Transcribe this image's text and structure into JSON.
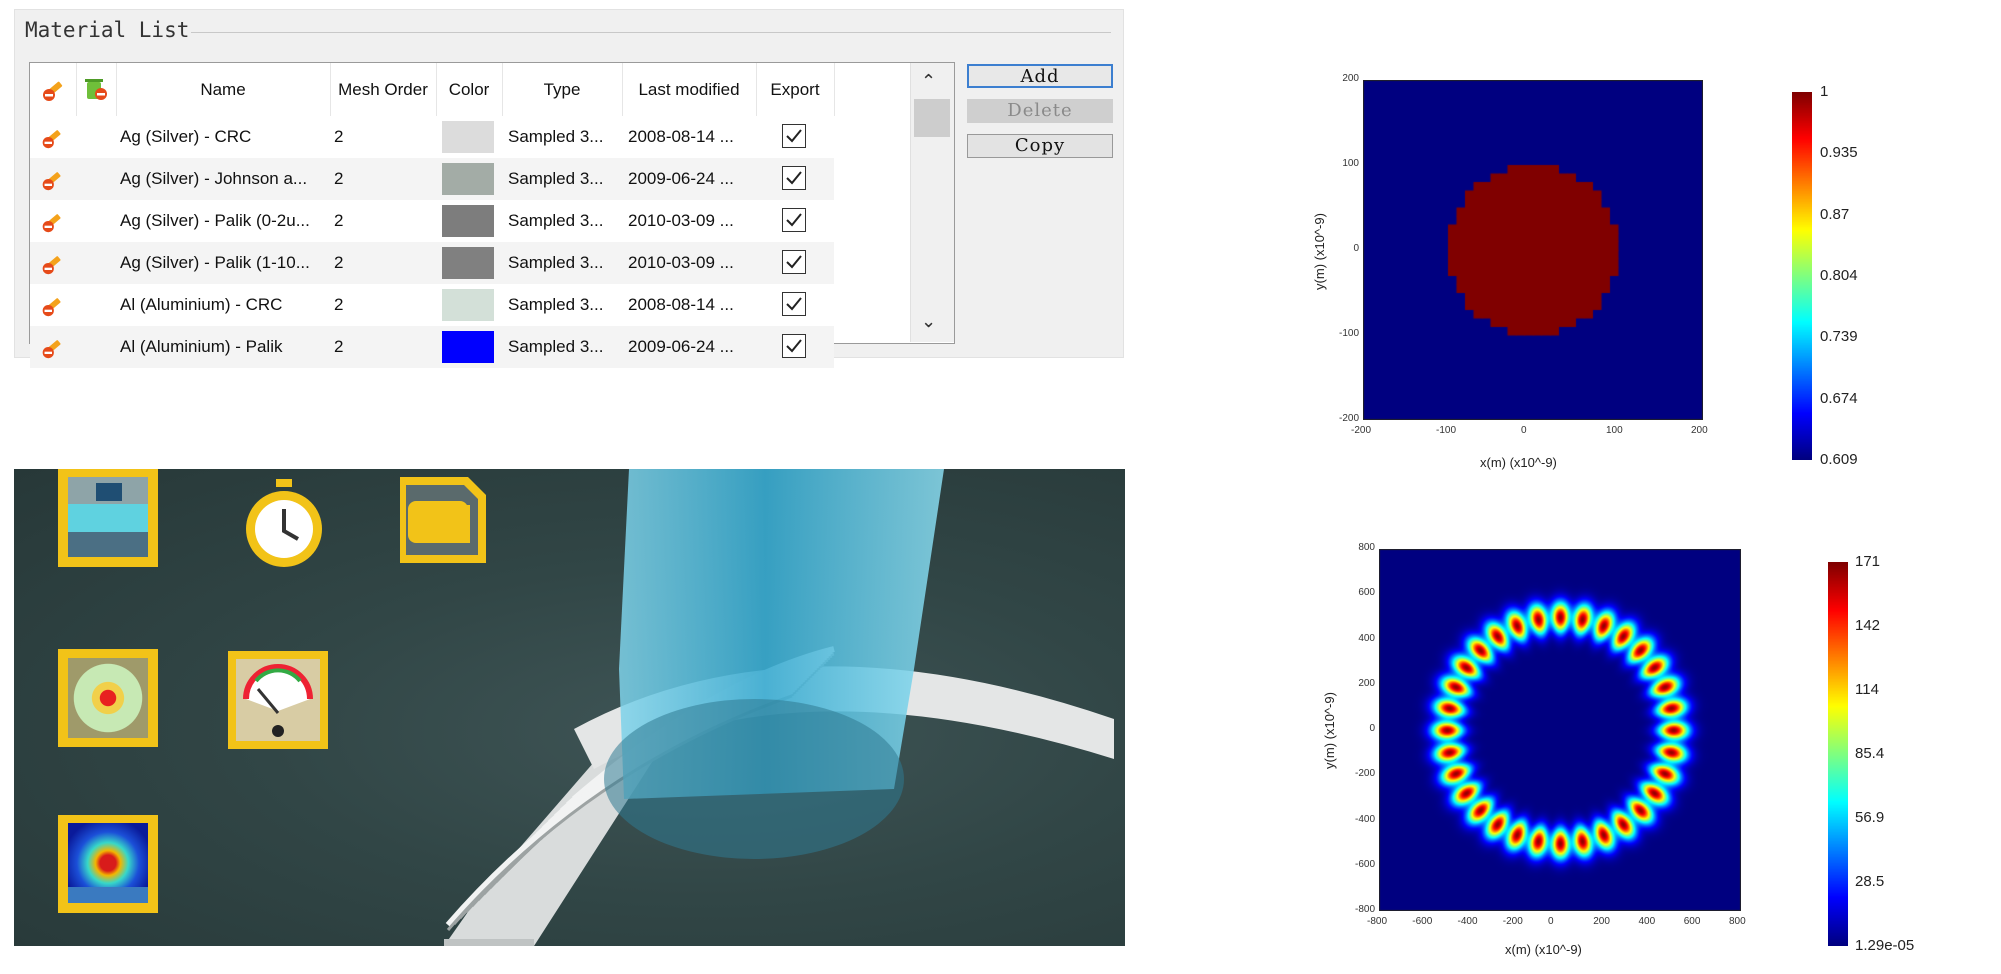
{
  "material_list": {
    "title": "Material List",
    "columns": [
      "Name",
      "Mesh Order",
      "Color",
      "Type",
      "Last modified",
      "Export"
    ],
    "rows": [
      {
        "name": "Ag (Silver) - CRC",
        "mesh_order": "2",
        "color": "#dcdcdc",
        "type": "Sampled 3...",
        "modified": "2008-08-14 ...",
        "export": true
      },
      {
        "name": "Ag (Silver) - Johnson a...",
        "mesh_order": "2",
        "color": "#a3aca6",
        "type": "Sampled 3...",
        "modified": "2009-06-24 ...",
        "export": true
      },
      {
        "name": "Ag (Silver) - Palik (0-2u...",
        "mesh_order": "2",
        "color": "#7d7d7d",
        "type": "Sampled 3...",
        "modified": "2010-03-09 ...",
        "export": true
      },
      {
        "name": "Ag (Silver) - Palik (1-10...",
        "mesh_order": "2",
        "color": "#808080",
        "type": "Sampled 3...",
        "modified": "2010-03-09 ...",
        "export": true
      },
      {
        "name": "Al (Aluminium) - CRC",
        "mesh_order": "2",
        "color": "#d3e0d8",
        "type": "Sampled 3...",
        "modified": "2008-08-14 ...",
        "export": true
      },
      {
        "name": "Al (Aluminium) - Palik",
        "mesh_order": "2",
        "color": "#0000ff",
        "type": "Sampled 3...",
        "modified": "2009-06-24 ...",
        "export": true
      }
    ],
    "buttons": {
      "add": "Add",
      "delete": "Delete",
      "copy": "Copy"
    }
  },
  "toolbar_icons": [
    "structure-icon",
    "timer-icon",
    "memory-card-icon",
    "source-icon",
    "meter-icon",
    "field-monitor-icon"
  ],
  "plot_top": {
    "chart_data": {
      "type": "heatmap",
      "xlabel": "x(m) (x10^-9)",
      "ylabel": "y(m) (x10^-9)",
      "x_ticks": [
        "-200",
        "-100",
        "0",
        "100",
        "200"
      ],
      "y_ticks": [
        "200",
        "100",
        "0",
        "-100",
        "-200"
      ],
      "xlim": [
        -200,
        200
      ],
      "ylim": [
        -200,
        200
      ],
      "shape": "filled circle",
      "circle_radius": 100,
      "inside_value": 1,
      "outside_value": 0.609,
      "colorbar_ticks": [
        "1",
        "0.935",
        "0.87",
        "0.804",
        "0.739",
        "0.674",
        "0.609"
      ],
      "colorbar_range": [
        0.609,
        1
      ]
    }
  },
  "plot_bottom": {
    "chart_data": {
      "type": "heatmap",
      "xlabel": "x(m) (x10^-9)",
      "ylabel": "y(m) (x10^-9)",
      "x_ticks": [
        "-800",
        "-600",
        "-400",
        "-200",
        "0",
        "200",
        "400",
        "600",
        "800"
      ],
      "y_ticks": [
        "800",
        "600",
        "400",
        "200",
        "0",
        "-200",
        "-400",
        "-600",
        "-800"
      ],
      "xlim": [
        -800,
        800
      ],
      "ylim": [
        -800,
        800
      ],
      "shape": "ring of lobes",
      "ring_radius": 500,
      "lobe_count": 32,
      "colorbar_ticks": [
        "171",
        "142",
        "114",
        "85.4",
        "56.9",
        "28.5",
        "1.29e-05"
      ],
      "colorbar_range": [
        1.29e-05,
        171
      ]
    }
  }
}
